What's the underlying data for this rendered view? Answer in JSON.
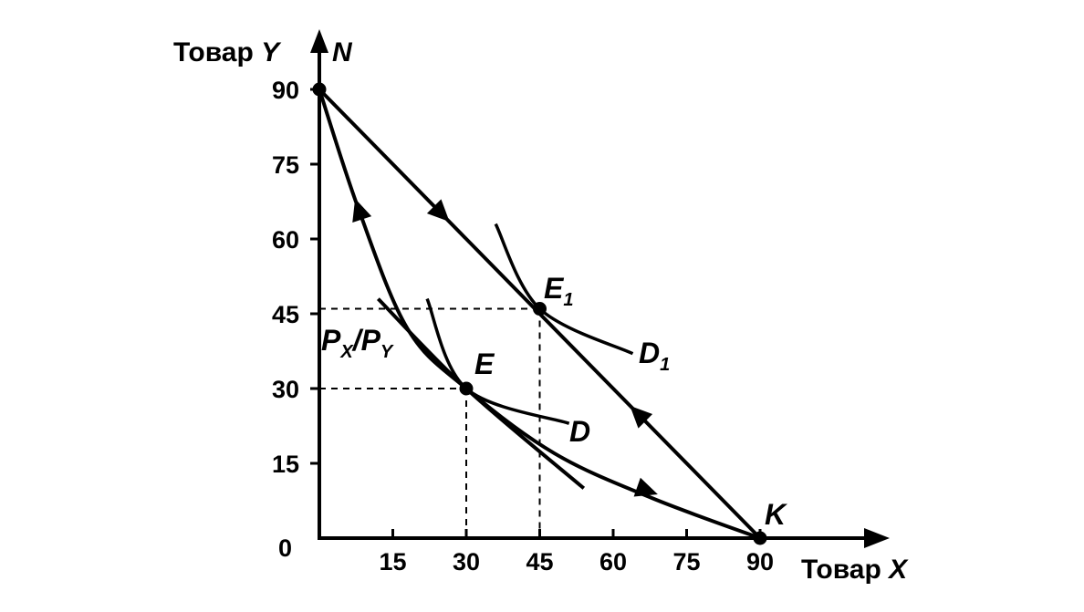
{
  "chart_data": {
    "type": "line",
    "xlabel": {
      "prefix": "Товар",
      "var": "X"
    },
    "ylabel": {
      "prefix": "Товар",
      "var": "Y"
    },
    "axis_top_label": "N",
    "origin_label": "0",
    "xlim": [
      0,
      90
    ],
    "ylim": [
      0,
      90
    ],
    "x_ticks": [
      15,
      30,
      45,
      60,
      75,
      90
    ],
    "y_ticks": [
      15,
      30,
      45,
      60,
      75,
      90
    ],
    "grid": false,
    "series": [
      {
        "points": [
          [
            0,
            90
          ],
          [
            90,
            0
          ]
        ],
        "style": "budget line with arrows",
        "arrow_direction": "both"
      },
      {
        "points": [
          [
            0,
            90
          ],
          [
            8,
            66
          ],
          [
            18,
            42
          ],
          [
            30,
            30
          ],
          [
            48,
            17
          ],
          [
            68,
            8
          ],
          [
            90,
            0
          ]
        ],
        "style": "curved consumption path with arrows"
      },
      {
        "points": [
          [
            12,
            48
          ],
          [
            30,
            30
          ],
          [
            54,
            10
          ]
        ],
        "style": "tangent line"
      }
    ],
    "indifference_curves": [
      {
        "name": "D",
        "points": [
          [
            22,
            48
          ],
          [
            30,
            30
          ],
          [
            51,
            23
          ]
        ]
      },
      {
        "name": "D1",
        "points": [
          [
            36,
            63
          ],
          [
            45,
            46
          ],
          [
            64,
            37
          ]
        ]
      }
    ],
    "points": [
      {
        "label": "E",
        "x": 30,
        "y": 30
      },
      {
        "label": "E",
        "subscript": "1",
        "x": 45,
        "y": 46
      },
      {
        "label": "K",
        "x": 90,
        "y": 0
      },
      {
        "label": "",
        "x": 0,
        "y": 90
      }
    ],
    "dashed_guides": [
      {
        "x": 30,
        "y": 30
      },
      {
        "x": 45,
        "y": 46
      }
    ],
    "annotations": [
      {
        "text_main": "P",
        "sub1": "X",
        "slash": "/",
        "text_main2": "P",
        "sub2": "Y"
      }
    ]
  }
}
